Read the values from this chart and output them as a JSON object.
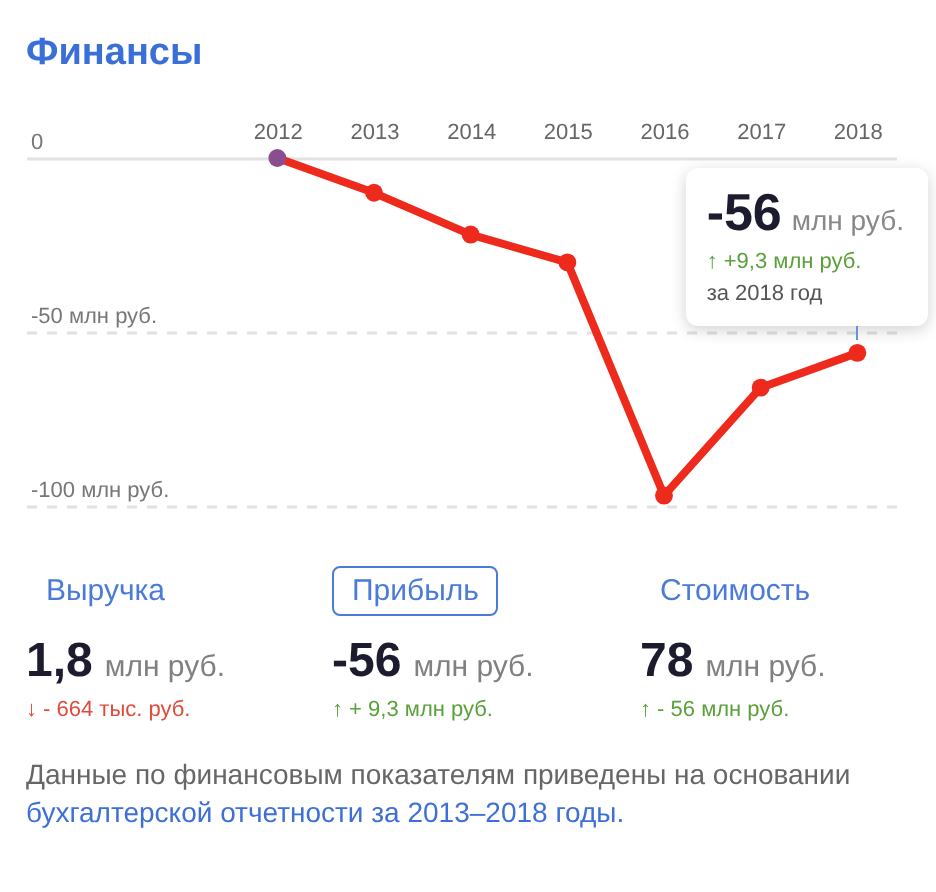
{
  "chart_data": [
    {
      "type": "line",
      "title": "Финансы",
      "x": [
        2012,
        2013,
        2014,
        2015,
        2016,
        2017,
        2018
      ],
      "series": [
        {
          "color": "#ee2a1c",
          "colors": [
            "#8a4d8e",
            "#ee2a1c",
            "#ee2a1c",
            "#ee2a1c",
            "#ee2a1c",
            "#ee2a1c",
            "#ee2a1c"
          ],
          "values": [
            0,
            -10,
            -22,
            -30,
            -97,
            -66,
            -56
          ]
        }
      ],
      "xlim": [
        2009.4,
        2018.4
      ],
      "xticks": [
        2012,
        2013,
        2014,
        2015,
        2016,
        2017,
        2018
      ],
      "ylim": [
        -100,
        0
      ],
      "yticks": [
        0,
        {
          "value": -50,
          "label": "-50 млн руб."
        },
        {
          "value": -100,
          "label": "-100 млн руб."
        }
      ],
      "grid": "y",
      "marker": "circle",
      "line_style": "solid",
      "annotations": [
        {
          "text": "-56",
          "x": 2018,
          "y": -56
        },
        "млн руб.",
        "↑ +9,3 млн руб.",
        "за 2018 год"
      ]
    },
    {
      "type": "other",
      "annotations": [
        "Выручка",
        "1,8",
        "млн руб.",
        "↓ - 664 тыс. руб.",
        "Прибыль",
        "-56",
        "млн руб.",
        "↑ + 9,3 млн руб.",
        "Стоимость",
        "78",
        "млн руб.",
        "↑ - 56 млн руб.",
        "Данные по финансовым показателям приведены на основании ",
        "бухгалтерской отчетности за 2013–2018 годы."
      ],
      "colors": [
        "#4a7bd8",
        "#1c1c2e",
        "#808080",
        "#e04a3a",
        "#4a7bd8",
        "#1c1c2e",
        "#808080",
        "#5aa03a",
        "#4a7bd8",
        "#1c1c2e",
        "#808080",
        "#5aa03a",
        "#666666",
        "#3d6fd6"
      ]
    }
  ]
}
